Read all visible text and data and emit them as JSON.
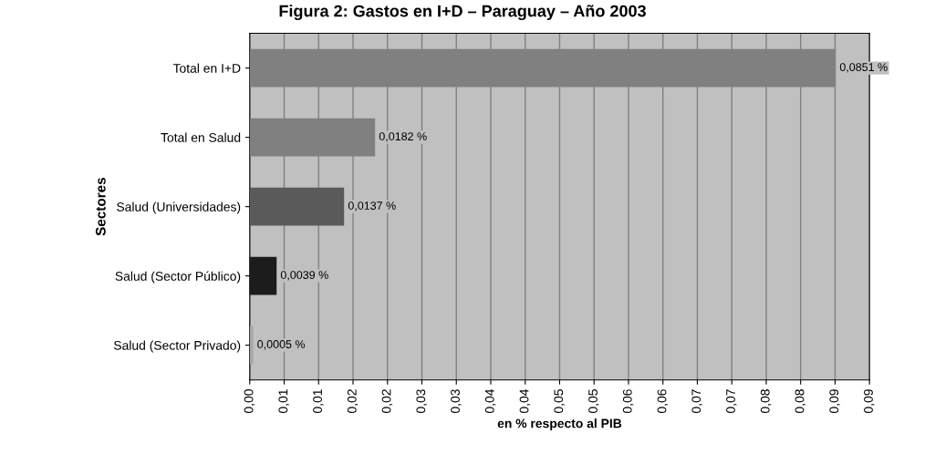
{
  "chart_data": {
    "type": "bar",
    "orientation": "horizontal",
    "title": "Figura 2: Gastos en I+D – Paraguay – Año 2003",
    "xlabel": "en % respecto al PIB",
    "ylabel": "Sectores",
    "categories": [
      "Total en I+D",
      "Total en Salud",
      "Salud (Universidades)",
      "Salud (Sector Público)",
      "Salud (Sector Privado)"
    ],
    "values": [
      0.0851,
      0.0182,
      0.0137,
      0.0039,
      0.0005
    ],
    "colors": [
      "#808080",
      "#808080",
      "#5a5a5a",
      "#1c1c1c",
      "#a6a6a6"
    ],
    "value_labels": [
      "0,0851 %",
      "0,0182 %",
      "0,0137 %",
      "0,0039 %",
      "0,0005 %"
    ],
    "xlim": [
      0,
      0.09
    ],
    "xticks": [
      {
        "value": 0,
        "label": "0,00"
      },
      {
        "value": 0.005,
        "label": "0,01"
      },
      {
        "value": 0.01,
        "label": "0,01"
      },
      {
        "value": 0.015,
        "label": "0,02"
      },
      {
        "value": 0.02,
        "label": "0,02"
      },
      {
        "value": 0.025,
        "label": "0,03"
      },
      {
        "value": 0.03,
        "label": "0,03"
      },
      {
        "value": 0.035,
        "label": "0,04"
      },
      {
        "value": 0.04,
        "label": "0,04"
      },
      {
        "value": 0.045,
        "label": "0,05"
      },
      {
        "value": 0.05,
        "label": "0,05"
      },
      {
        "value": 0.055,
        "label": "0,06"
      },
      {
        "value": 0.06,
        "label": "0,06"
      },
      {
        "value": 0.065,
        "label": "0,07"
      },
      {
        "value": 0.07,
        "label": "0,07"
      },
      {
        "value": 0.075,
        "label": "0,08"
      },
      {
        "value": 0.08,
        "label": "0,08"
      },
      {
        "value": 0.085,
        "label": "0,09"
      },
      {
        "value": 0.09,
        "label": "0,09"
      }
    ],
    "grid": "x",
    "legend": false
  }
}
